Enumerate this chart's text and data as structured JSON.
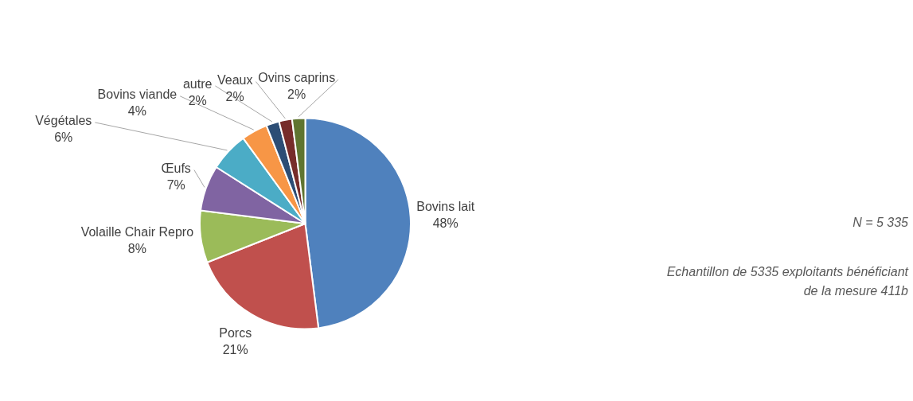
{
  "chart_data": {
    "type": "pie",
    "categories": [
      "Bovins lait",
      "Porcs",
      "Volaille Chair Repro",
      "Œufs",
      "Végétales",
      "Bovins viande",
      "autre",
      "Veaux",
      "Ovins caprins"
    ],
    "values": [
      48,
      21,
      8,
      7,
      6,
      4,
      2,
      2,
      2
    ],
    "value_labels": [
      "48%",
      "21%",
      "8%",
      "7%",
      "6%",
      "4%",
      "2%",
      "2%",
      "2%"
    ],
    "colors": [
      "#4f81bd",
      "#c0504d",
      "#9bbb59",
      "#8064a2",
      "#4bacc6",
      "#f79646",
      "#2c4d75",
      "#772c2a",
      "#5f7530"
    ],
    "legend": false,
    "annotations": [
      "N = 5 335",
      "Echantillon de 5335 exploitants bénéficiant de la mesure 411b"
    ]
  }
}
